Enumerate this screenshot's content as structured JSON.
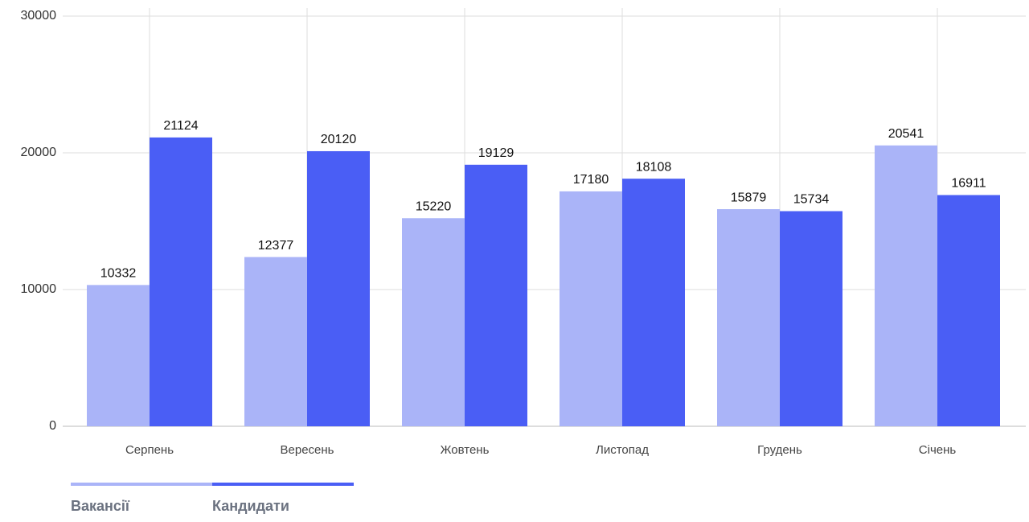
{
  "chart_data": {
    "type": "bar",
    "categories": [
      "Серпень",
      "Вересень",
      "Жовтень",
      "Листопад",
      "Грудень",
      "Січень"
    ],
    "series": [
      {
        "name": "Вакансії",
        "color": "#aab4f8",
        "values": [
          10332,
          12377,
          15220,
          17180,
          15879,
          20541
        ]
      },
      {
        "name": "Кандидати",
        "color": "#4a5ef5",
        "values": [
          21124,
          20120,
          19129,
          18108,
          15734,
          16911
        ]
      }
    ],
    "ylim": [
      0,
      30000
    ],
    "yticks": [
      0,
      10000,
      20000,
      30000
    ],
    "grid": true,
    "legend": "bottom"
  }
}
